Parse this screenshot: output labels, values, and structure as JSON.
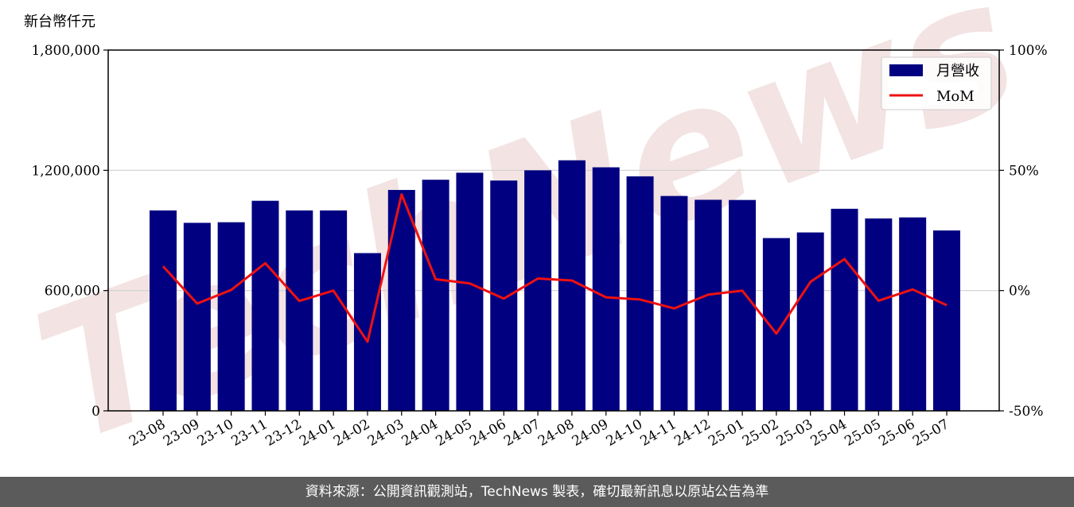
{
  "chart_data": {
    "type": "bar",
    "unit_label": "新台幣仟元",
    "categories": [
      "23-08",
      "23-09",
      "23-10",
      "23-11",
      "23-12",
      "24-01",
      "24-02",
      "24-03",
      "24-04",
      "24-05",
      "24-06",
      "24-07",
      "24-08",
      "24-09",
      "24-10",
      "24-11",
      "24-12",
      "25-01",
      "25-02",
      "25-03",
      "25-04",
      "25-05",
      "25-06",
      "25-07"
    ],
    "series": [
      {
        "name": "月營收",
        "type": "bar",
        "axis": "left",
        "color": "#000080",
        "values": [
          1000000,
          938000,
          941000,
          1048000,
          1000000,
          1000000,
          787000,
          1102000,
          1153000,
          1188000,
          1149000,
          1200000,
          1250000,
          1215000,
          1170000,
          1072000,
          1053000,
          1052000,
          862000,
          890000,
          1008000,
          960000,
          965000,
          900000
        ]
      },
      {
        "name": "MoM",
        "type": "line",
        "axis": "right",
        "color": "#ee1111",
        "values": [
          10.1,
          -5.4,
          0.3,
          11.4,
          -4.3,
          0.0,
          -21.3,
          40.0,
          4.7,
          3.0,
          -3.3,
          5.0,
          4.2,
          -2.8,
          -3.7,
          -7.4,
          -1.7,
          0.0,
          -17.9,
          3.6,
          13.1,
          -4.2,
          0.5,
          -6.1
        ]
      }
    ],
    "y_left": {
      "min": 0,
      "max": 1800000,
      "ticks": [
        0,
        600000,
        1200000,
        1800000
      ],
      "tick_labels": [
        "0",
        "600,000",
        "1,200,000",
        "1,800,000"
      ]
    },
    "y_right": {
      "min": -50,
      "max": 100,
      "ticks": [
        -50,
        0,
        50,
        100
      ],
      "tick_labels": [
        "-50%",
        "0%",
        "50%",
        "100%"
      ]
    },
    "grid": "horizontal",
    "legend_position": "top-right",
    "watermark": "TechNews"
  },
  "footer": {
    "text": "資料來源：公開資訊觀測站，TechNews 製表，確切最新訊息以原站公告為準"
  }
}
